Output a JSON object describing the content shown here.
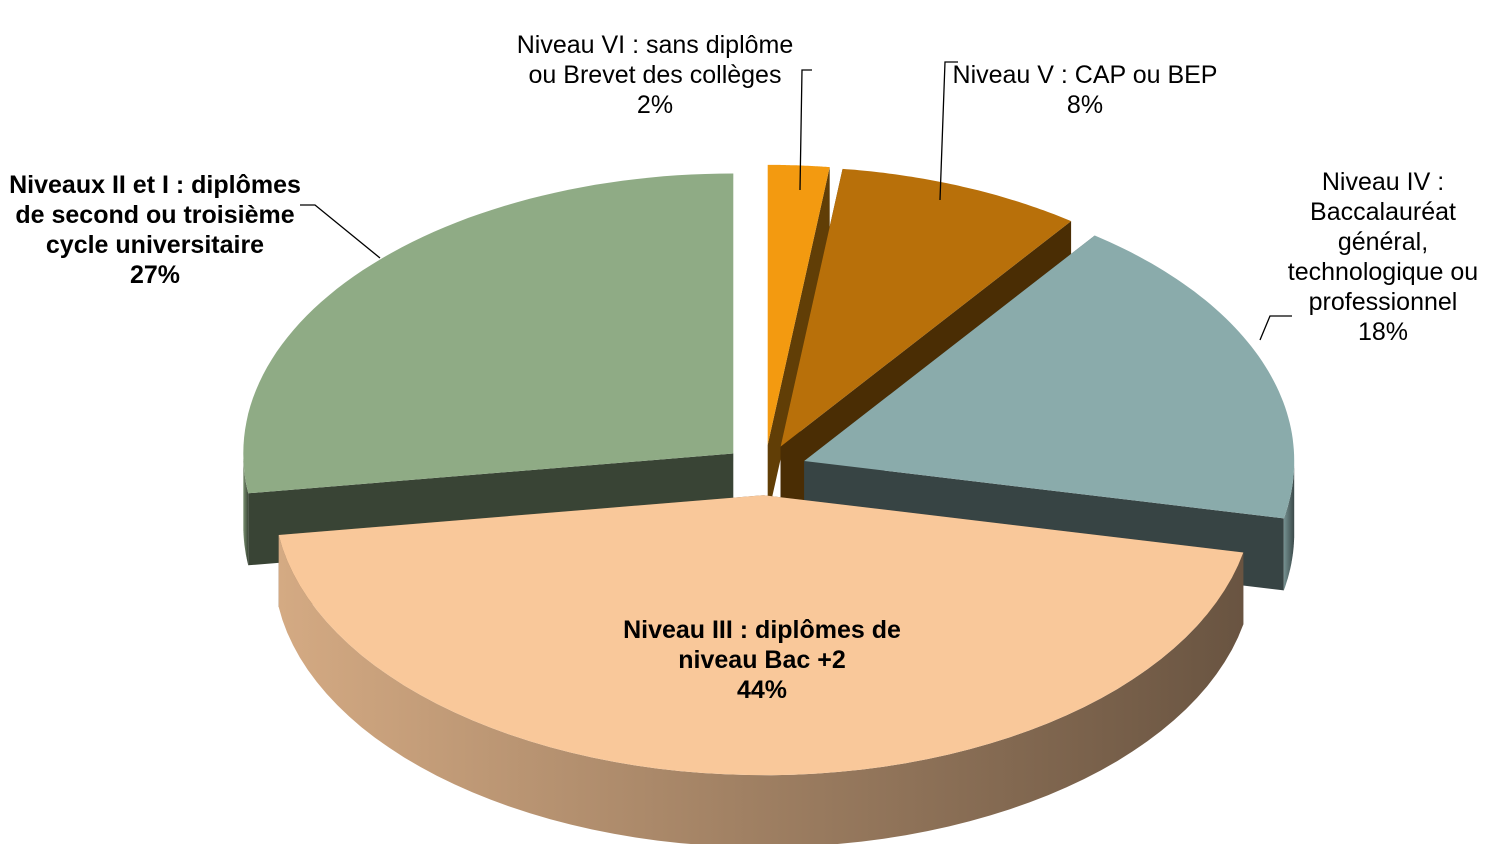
{
  "chart_data": {
    "type": "pie",
    "categories": [
      "Niveau VI : sans diplôme ou Brevet des collèges",
      "Niveau V : CAP ou BEP",
      "Niveau IV : Baccalauréat général, technologique ou professionnel",
      "Niveau III : diplômes de niveau Bac +2",
      "Niveaux II et I : diplômes de second ou troisième cycle universitaire"
    ],
    "values": [
      2,
      8,
      18,
      44,
      27
    ],
    "value_labels": [
      "2%",
      "8%",
      "18%",
      "44%",
      "27%"
    ],
    "colors": [
      "#f39a10",
      "#b8700a",
      "#8aabab",
      "#f9c89a",
      "#8fab85"
    ]
  }
}
